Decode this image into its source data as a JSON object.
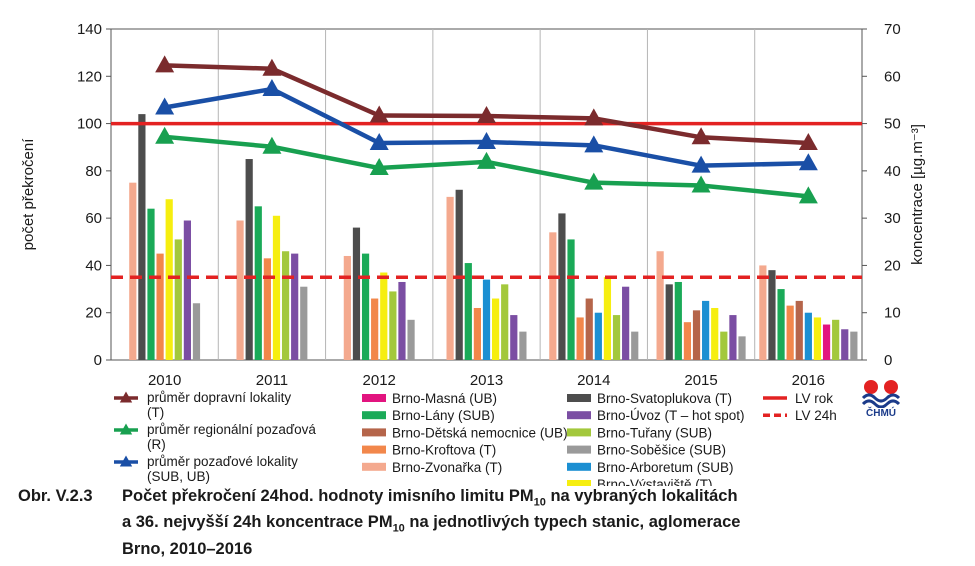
{
  "chart_data": {
    "type": "bar",
    "categories": [
      "2010",
      "2011",
      "2012",
      "2013",
      "2014",
      "2015",
      "2016"
    ],
    "left_axis": {
      "label": "počet překročení",
      "min": 0,
      "max": 140,
      "ticks": [
        "0",
        "20",
        "40",
        "60",
        "80",
        "100",
        "120",
        "140"
      ]
    },
    "right_axis": {
      "label": "koncentrace [µg.m⁻³]",
      "min": 0,
      "max": 70,
      "ticks": [
        "0",
        "10",
        "20",
        "30",
        "40",
        "50",
        "60",
        "70"
      ]
    },
    "grid": "vertical",
    "legend_placement": "bottom",
    "bar_series": [
      {
        "name": "Brno-Zvonařka (T)",
        "color": "#f4a98e",
        "values": [
          75,
          59,
          44,
          69,
          54,
          46,
          40
        ]
      },
      {
        "name": "Brno-Svatoplukova (T)",
        "color": "#4d4d4d",
        "values": [
          104,
          85,
          56,
          72,
          62,
          32,
          38
        ]
      },
      {
        "name": "Brno-Lány (SUB)",
        "color": "#1aaa58",
        "values": [
          64,
          65,
          45,
          41,
          51,
          33,
          30
        ]
      },
      {
        "name": "Brno-Kroftova (T)",
        "color": "#f2874b",
        "values": [
          45,
          43,
          26,
          22,
          18,
          16,
          23
        ]
      },
      {
        "name": "Brno-Dětská nemocnice (UB)",
        "color": "#b5654a",
        "values": [
          null,
          null,
          null,
          null,
          26,
          21,
          25
        ]
      },
      {
        "name": "Brno-Arboretum (SUB)",
        "color": "#1b8fd2",
        "values": [
          null,
          null,
          null,
          34,
          20,
          25,
          20
        ]
      },
      {
        "name": "Brno-Výstaviště (T)",
        "color": "#f6ee10",
        "values": [
          68,
          61,
          37,
          26,
          35,
          22,
          18
        ]
      },
      {
        "name": "Brno-Masná (UB)",
        "color": "#e2147f",
        "values": [
          null,
          null,
          null,
          null,
          null,
          null,
          15
        ]
      },
      {
        "name": "Brno-Tuřany (SUB)",
        "color": "#a3c83c",
        "values": [
          51,
          46,
          29,
          32,
          19,
          12,
          17
        ]
      },
      {
        "name": "Brno-Úvoz (T – hot spot)",
        "color": "#7b4ea3",
        "values": [
          59,
          45,
          33,
          19,
          31,
          19,
          13
        ]
      },
      {
        "name": "Brno-Soběšice (SUB)",
        "color": "#9a9a9a",
        "values": [
          24,
          31,
          17,
          12,
          12,
          10,
          12
        ]
      }
    ],
    "line_series": [
      {
        "name": "průměr dopravní lokality (T)",
        "color": "#7b2b2d",
        "values_ug_m3": [
          62.3,
          61.6,
          51.7,
          51.6,
          51.1,
          47.1,
          45.9
        ]
      },
      {
        "name": "průměr pozaďové lokality (SUB, UB)",
        "color": "#1a4fa6",
        "values_ug_m3": [
          53.4,
          57.3,
          45.9,
          46.1,
          45.4,
          41.1,
          41.6
        ]
      },
      {
        "name": "průměr regionální pozaďová (R)",
        "color": "#18a050",
        "values_ug_m3": [
          47.2,
          45.1,
          40.6,
          41.9,
          37.5,
          36.9,
          34.6
        ]
      }
    ],
    "limit_lines": [
      {
        "name": "LV rok",
        "value_ug_m3": 50,
        "style": "solid",
        "color": "#e32222"
      },
      {
        "name": "LV 24h",
        "value_ug_m3": 17.5,
        "style": "dashed",
        "color": "#e32222"
      }
    ],
    "legend": {
      "col1": [
        {
          "series": "průměr dopravní lokality (T)",
          "lines": [
            "průměr dopravní lokality",
            "(T)"
          ]
        },
        {
          "series": "průměr regionální pozaďová (R)",
          "lines": [
            "průměr regionální pozaďová",
            "(R)"
          ]
        },
        {
          "series": "průměr pozaďové lokality (SUB, UB)",
          "lines": [
            "průměr pozaďové lokality",
            "(SUB, UB)"
          ]
        }
      ],
      "col2": [
        "Brno-Masná (UB)",
        "Brno-Lány (SUB)",
        "Brno-Dětská nemocnice (UB)",
        "Brno-Kroftova (T)",
        "Brno-Zvonařka (T)"
      ],
      "col3": [
        "Brno-Svatoplukova (T)",
        "Brno-Úvoz (T – hot spot)",
        "Brno-Tuřany (SUB)",
        "Brno-Soběšice (SUB)",
        "Brno-Arboretum (SUB)",
        "Brno-Výstaviště (T)"
      ],
      "col4": [
        "LV rok",
        "LV 24h"
      ]
    }
  },
  "caption": {
    "label": "Obr. V.2.3",
    "line1": "Počet překročení 24hod. hodnoty imisního limitu PM",
    "line1_sub": "10",
    "line1_end": " na vybraných lokalitách",
    "line2": "a 36. nejvyšší 24h koncentrace PM",
    "line2_sub": "10",
    "line2_end": " na jednotlivých typech stanic, aglomerace",
    "line3": "Brno, 2010–2016"
  },
  "logo": {
    "text": "ČHMÚ",
    "colors": [
      "#e32222",
      "#1b3b8a"
    ]
  }
}
